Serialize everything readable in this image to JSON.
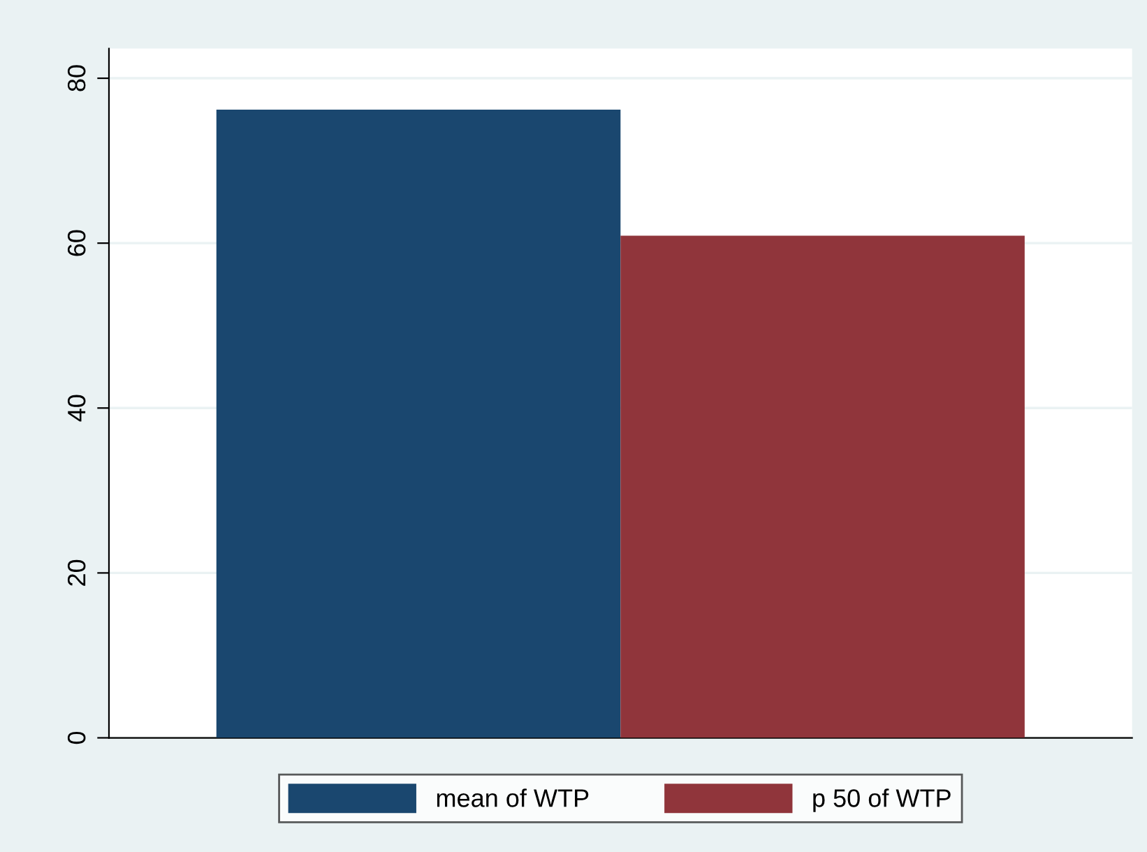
{
  "chart_data": {
    "type": "bar",
    "categories": [
      null
    ],
    "series": [
      {
        "name": "mean of WTP",
        "color": "#1a476f",
        "values": [
          76.2
        ]
      },
      {
        "name": "p 50 of WTP",
        "color": "#90353b",
        "values": [
          60.9
        ]
      }
    ],
    "ylim": [
      0,
      83.6
    ],
    "yticks": [
      0,
      20,
      40,
      60,
      80
    ],
    "grid": "y",
    "legend": "bottom"
  }
}
